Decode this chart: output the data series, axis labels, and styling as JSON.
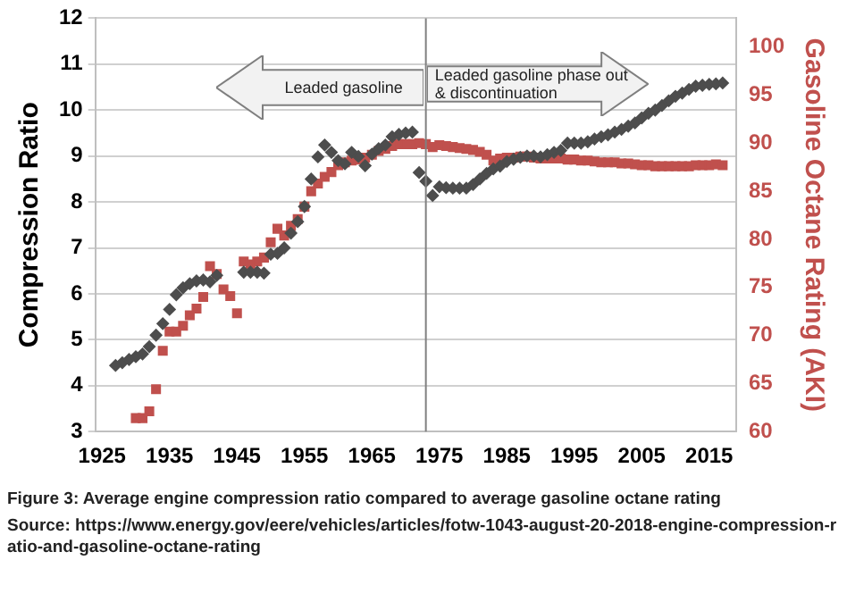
{
  "chart_data": {
    "type": "scatter",
    "title": "Figure 3:  Average engine compression ratio compared to average gasoline octane rating",
    "ylabel": "Compression Ratio",
    "y2label": "Gasoline Octane Rating (AKI)",
    "annotations": [
      "Leaded gasoline",
      "Leaded gasoline phase out & discontinuation",
      "Source: https://www.energy.gov/eere/vehicles/articles/fotw-1043-august-20-2018-engine-compression-ratio-and-gasoline-octane-rating"
    ],
    "xlim": [
      1924,
      2019
    ],
    "xticks": [
      1925,
      1935,
      1945,
      1955,
      1965,
      1975,
      1985,
      1995,
      2005,
      2015
    ],
    "ylim": [
      3,
      12
    ],
    "yticks": [
      3,
      4,
      5,
      6,
      7,
      8,
      9,
      10,
      11,
      12
    ],
    "y2lim": [
      60,
      103
    ],
    "y2ticks": [
      60,
      65,
      70,
      75,
      80,
      85,
      90,
      95,
      100
    ],
    "grid": "y",
    "legend": false,
    "ref_lines": [
      {
        "axis": "x",
        "value": 1973,
        "color": "#808080"
      }
    ],
    "series": [
      {
        "color": "#4d4d4d",
        "marker": "diamond",
        "x": [
          1927,
          1928,
          1929,
          1930,
          1931,
          1932,
          1933,
          1934,
          1935,
          1936,
          1937,
          1938,
          1939,
          1940,
          1941,
          1942,
          1946,
          1947,
          1948,
          1949,
          1950,
          1951,
          1952,
          1953,
          1954,
          1955,
          1956,
          1957,
          1958,
          1959,
          1960,
          1961,
          1962,
          1963,
          1964,
          1965,
          1966,
          1967,
          1968,
          1969,
          1970,
          1971,
          1972,
          1973,
          1974,
          1975,
          1976,
          1977,
          1978,
          1979,
          1980,
          1981,
          1982,
          1983,
          1984,
          1985,
          1986,
          1987,
          1988,
          1989,
          1990,
          1991,
          1992,
          1993,
          1994,
          1995,
          1996,
          1997,
          1998,
          1999,
          2000,
          2001,
          2002,
          2003,
          2004,
          2005,
          2006,
          2007,
          2008,
          2009,
          2010,
          2011,
          2012,
          2013,
          2014,
          2015,
          2016,
          2017
        ],
        "values": [
          4.44,
          4.5,
          4.57,
          4.63,
          4.69,
          4.85,
          5.1,
          5.35,
          5.66,
          5.98,
          6.13,
          6.22,
          6.28,
          6.3,
          6.26,
          6.4,
          6.47,
          6.47,
          6.47,
          6.45,
          6.86,
          6.88,
          7.0,
          7.32,
          7.57,
          7.9,
          8.5,
          8.98,
          9.24,
          9.08,
          8.9,
          8.83,
          9.08,
          8.99,
          8.79,
          9.04,
          9.16,
          9.24,
          9.42,
          9.47,
          9.5,
          9.52,
          8.64,
          8.45,
          8.14,
          8.33,
          8.31,
          8.3,
          8.3,
          8.3,
          8.38,
          8.5,
          8.62,
          8.72,
          8.78,
          8.88,
          8.93,
          8.97,
          9.0,
          9.0,
          8.98,
          9.03,
          9.08,
          9.12,
          9.28,
          9.28,
          9.28,
          9.31,
          9.37,
          9.42,
          9.46,
          9.52,
          9.58,
          9.65,
          9.72,
          9.83,
          9.93,
          10.0,
          10.1,
          10.2,
          10.3,
          10.37,
          10.45,
          10.52,
          10.54,
          10.56,
          10.57,
          10.59
        ]
      },
      {
        "color": "#c0504d",
        "marker": "square",
        "axis": "y2",
        "x": [
          1930,
          1931,
          1932,
          1933,
          1934,
          1935,
          1936,
          1937,
          1938,
          1939,
          1940,
          1941,
          1942,
          1943,
          1944,
          1945,
          1946,
          1947,
          1948,
          1949,
          1950,
          1951,
          1952,
          1953,
          1954,
          1955,
          1956,
          1957,
          1958,
          1959,
          1960,
          1961,
          1962,
          1963,
          1964,
          1965,
          1966,
          1967,
          1968,
          1969,
          1970,
          1971,
          1972,
          1973,
          1974,
          1975,
          1976,
          1977,
          1978,
          1979,
          1980,
          1981,
          1982,
          1983,
          1984,
          1985,
          1986,
          1987,
          1988,
          1989,
          1990,
          1991,
          1992,
          1993,
          1994,
          1995,
          1996,
          1997,
          1998,
          1999,
          2000,
          2001,
          2002,
          2003,
          2004,
          2005,
          2006,
          2007,
          2008,
          2009,
          2010,
          2011,
          2012,
          2013,
          2014,
          2015,
          2016,
          2017
        ],
        "values": [
          61.4,
          61.4,
          62.1,
          64.4,
          68.4,
          70.4,
          70.4,
          71.0,
          72.1,
          72.8,
          74.0,
          77.2,
          76.4,
          74.8,
          74.1,
          72.3,
          77.7,
          77.4,
          77.7,
          78.1,
          79.7,
          81.1,
          80.4,
          81.4,
          82.1,
          83.4,
          85.0,
          85.8,
          86.5,
          87.0,
          87.7,
          88.0,
          88.2,
          88.3,
          88.5,
          88.8,
          89.2,
          89.4,
          89.7,
          89.9,
          89.9,
          89.9,
          90.0,
          89.9,
          89.6,
          89.8,
          89.7,
          89.6,
          89.5,
          89.4,
          89.3,
          89.1,
          88.8,
          88.2,
          88.4,
          88.5,
          88.5,
          88.6,
          88.6,
          88.5,
          88.4,
          88.4,
          88.4,
          88.4,
          88.3,
          88.3,
          88.2,
          88.2,
          88.1,
          88.0,
          88.0,
          88.0,
          87.9,
          87.9,
          87.8,
          87.7,
          87.7,
          87.6,
          87.6,
          87.6,
          87.6,
          87.6,
          87.6,
          87.7,
          87.7,
          87.7,
          87.8,
          87.7
        ]
      }
    ]
  }
}
